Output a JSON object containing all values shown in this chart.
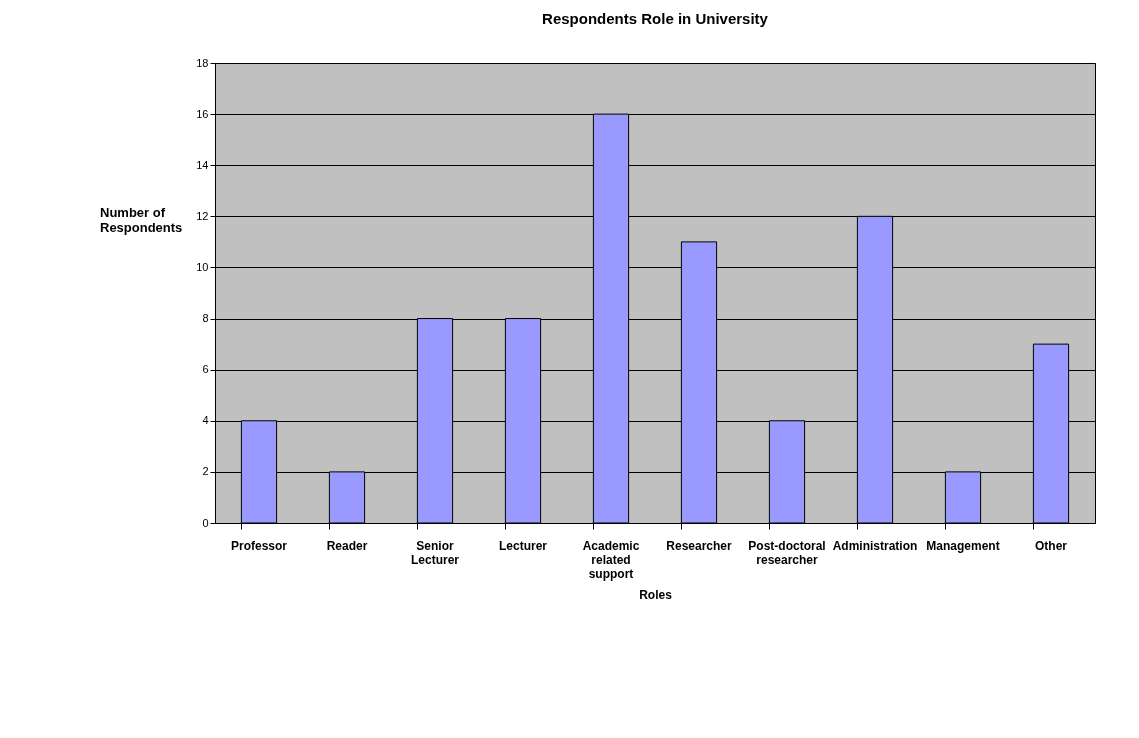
{
  "chart_data": {
    "type": "bar",
    "title": "Respondents Role in University",
    "xlabel": "Roles",
    "ylabel": "Number of Respondents",
    "categories": [
      "Professor",
      "Reader",
      "Senior Lecturer",
      "Lecturer",
      "Academic related support",
      "Researcher",
      "Post-doctoral researcher",
      "Administration",
      "Management",
      "Other"
    ],
    "values": [
      4,
      2,
      8,
      8,
      16,
      11,
      4,
      12,
      2,
      7
    ],
    "color": "#9999ff",
    "ylim": [
      0,
      18
    ],
    "yticks": [
      0,
      2,
      4,
      6,
      8,
      10,
      12,
      14,
      16,
      18
    ],
    "grid": "y"
  }
}
